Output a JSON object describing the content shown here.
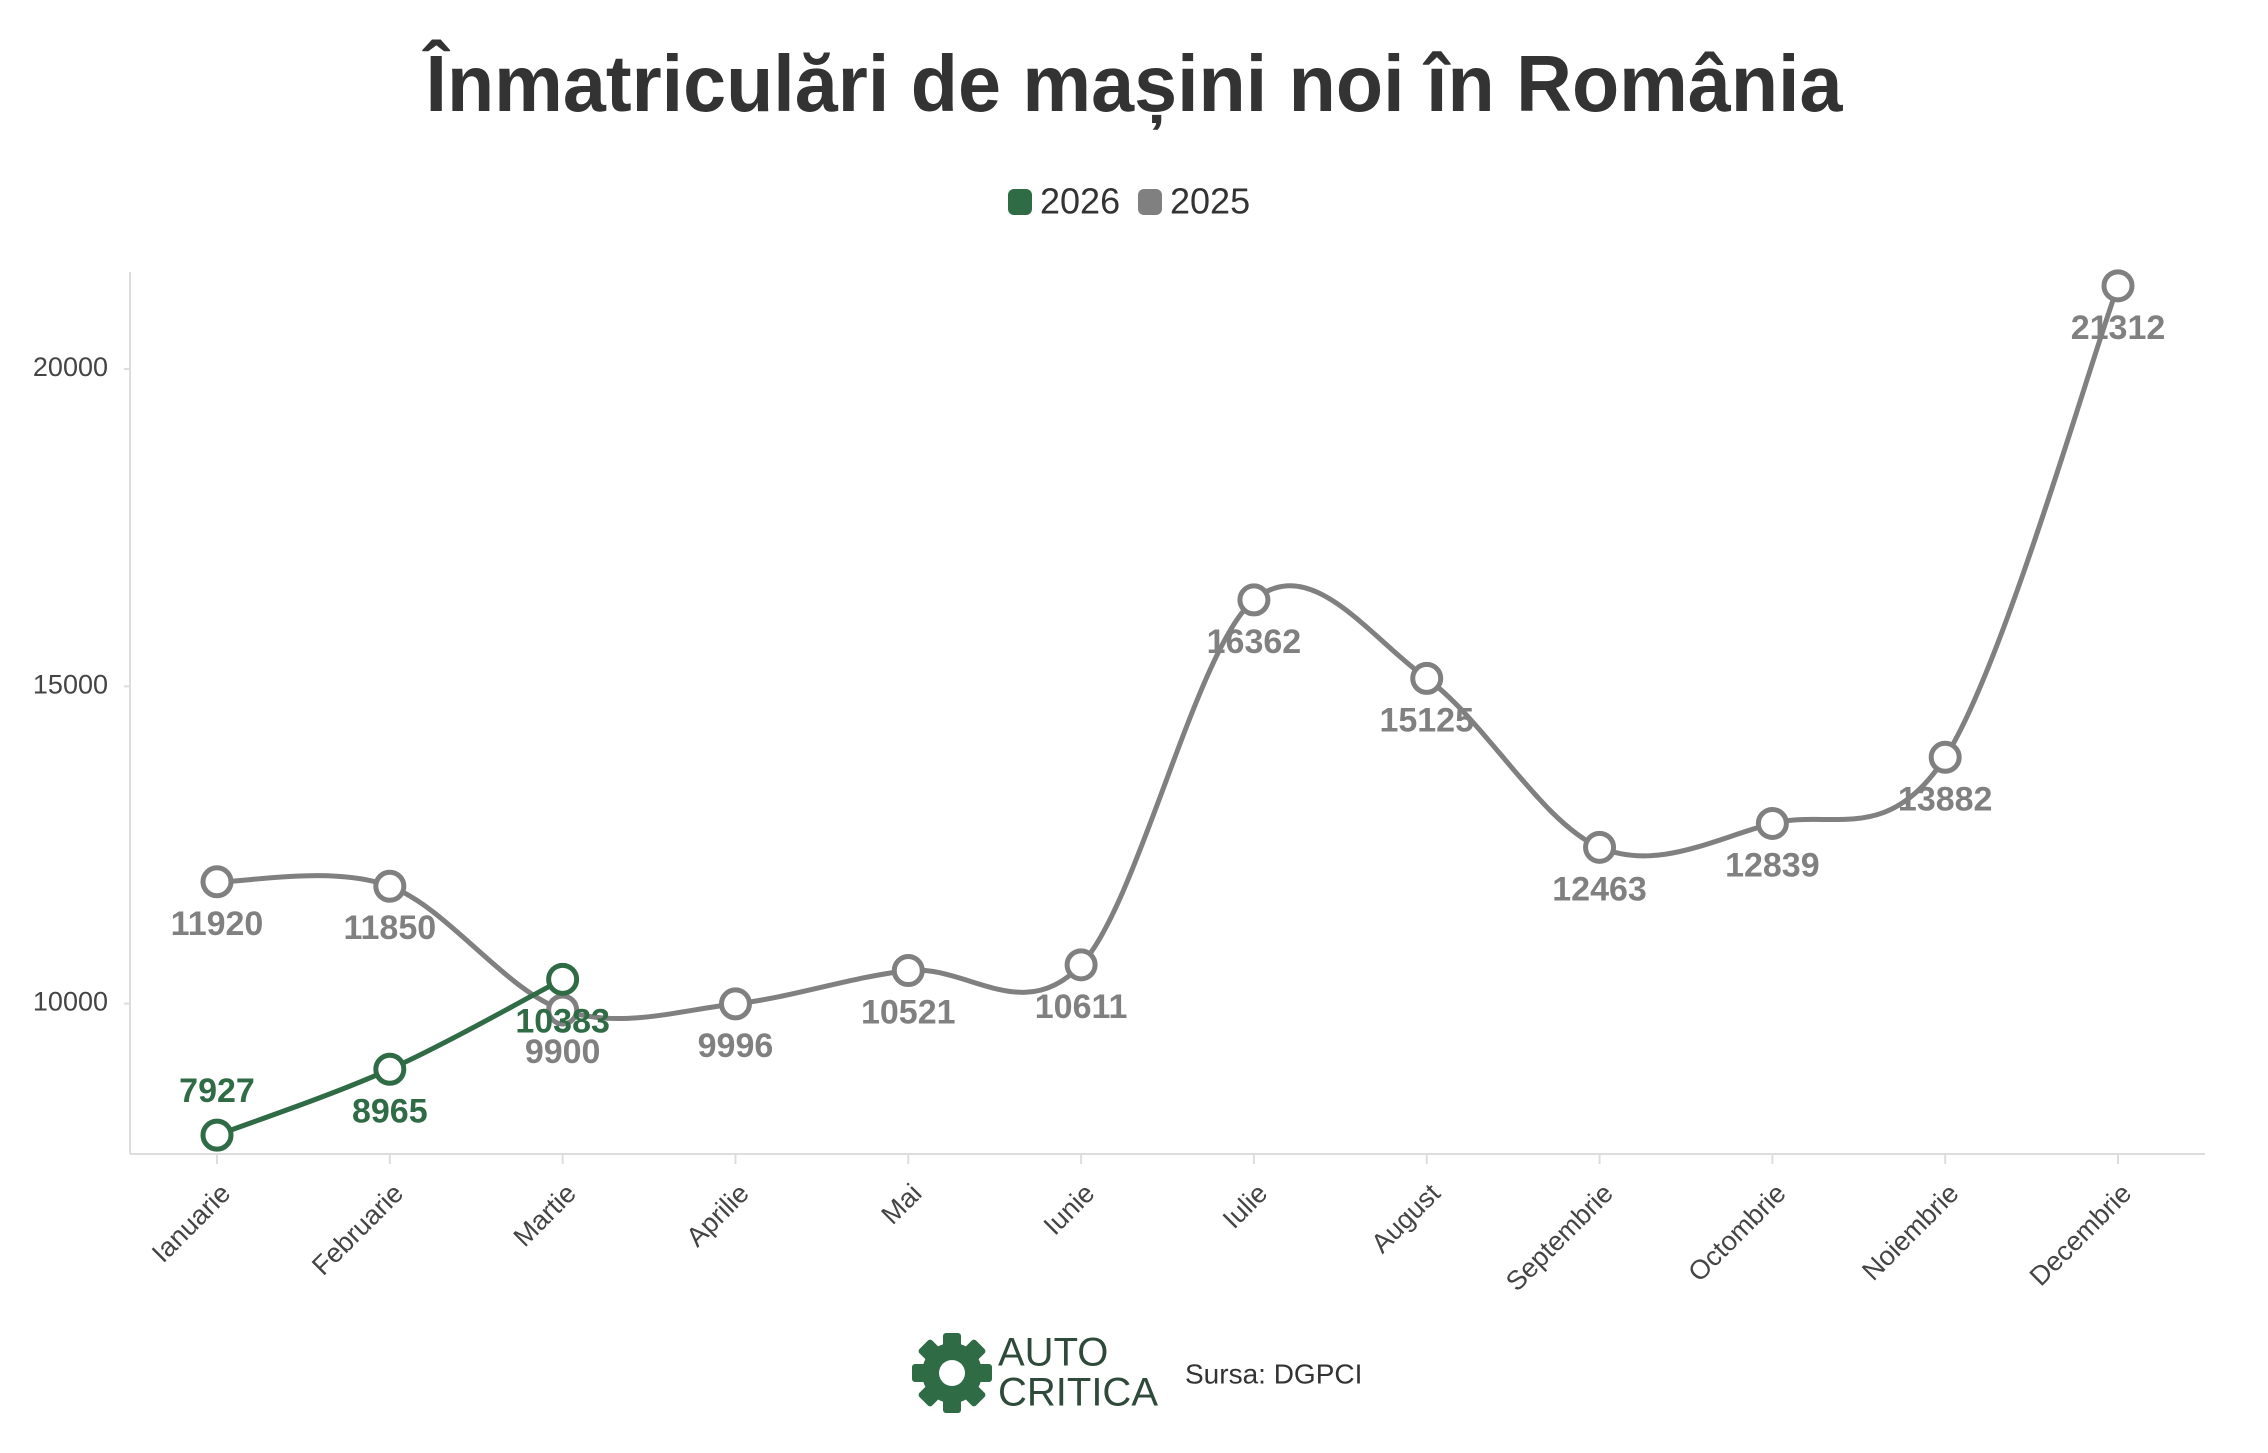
{
  "chart_data": {
    "type": "line",
    "title": "Înmatriculări de mașini noi în România",
    "categories": [
      "Ianuarie",
      "Februarie",
      "Martie",
      "Aprilie",
      "Mai",
      "Iunie",
      "Iulie",
      "August",
      "Septembrie",
      "Octombrie",
      "Noiembrie",
      "Decembrie"
    ],
    "series": [
      {
        "name": "2026",
        "color": "#2f6b45",
        "values": [
          7927,
          8965,
          10383,
          null,
          null,
          null,
          null,
          null,
          null,
          null,
          null,
          null
        ]
      },
      {
        "name": "2025",
        "color": "#808080",
        "values": [
          11920,
          11850,
          9900,
          9996,
          10521,
          10611,
          16362,
          15125,
          12463,
          12839,
          13882,
          21312
        ]
      }
    ],
    "ylim": [
      7630,
      21530
    ],
    "yticks": [
      10000,
      15000,
      20000
    ],
    "grid": false,
    "legend": "top",
    "logo": {
      "line1": "AUTO",
      "line2": "CRITICA"
    },
    "source": "Sursa: DGPCI"
  }
}
